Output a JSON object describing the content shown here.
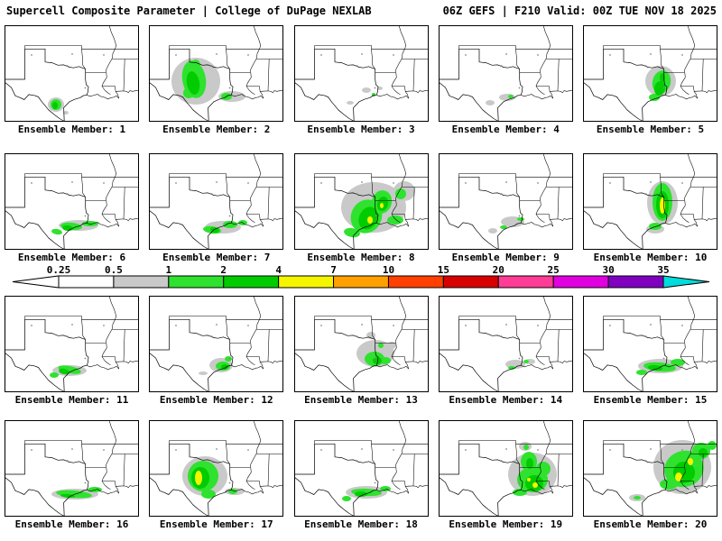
{
  "header": {
    "left": "Supercell Composite Parameter | College of DuPage NEXLAB",
    "right": "06Z GEFS | F210 Valid: 00Z TUE NOV 18 2025"
  },
  "colorbar": {
    "ticks": [
      "0.25",
      "0.5",
      "1",
      "2",
      "4",
      "7",
      "10",
      "15",
      "20",
      "25",
      "30",
      "35"
    ],
    "segments": [
      "#ffffff",
      "#c9c9c9",
      "#2ee22e",
      "#00cc00",
      "#f5f500",
      "#ffa000",
      "#ff4000",
      "#d80000",
      "#ff3c96",
      "#e000e0",
      "#8000c0"
    ],
    "arrow_left": "#ffffff",
    "arrow_right": "#00dcdc"
  },
  "map_palette": {
    "gray": "#c9c9c9",
    "green1": "#2ee22e",
    "green2": "#00cc00",
    "yellow": "#f5f500",
    "orange": "#ffa000"
  },
  "members": [
    {
      "label": "Ensemble Member: 1",
      "blobs": [
        [
          57,
          88,
          9,
          8,
          0,
          "gray"
        ],
        [
          68,
          97,
          3,
          2,
          0,
          "gray"
        ],
        [
          57,
          88,
          6,
          6,
          0,
          "green1"
        ],
        [
          56,
          89,
          3,
          4,
          0,
          "green2"
        ]
      ]
    },
    {
      "label": "Ensemble Member: 2",
      "blobs": [
        [
          52,
          62,
          27,
          26,
          0,
          "gray"
        ],
        [
          92,
          79,
          15,
          6,
          0,
          "gray"
        ],
        [
          50,
          60,
          13,
          21,
          -10,
          "green1"
        ],
        [
          44,
          75,
          6,
          6,
          0,
          "green1"
        ],
        [
          86,
          79,
          6,
          4,
          0,
          "green1"
        ],
        [
          52,
          45,
          5,
          7,
          0,
          "green1"
        ],
        [
          49,
          64,
          7,
          13,
          -10,
          "green2"
        ],
        [
          50,
          70,
          4,
          7,
          0,
          "green2"
        ]
      ]
    },
    {
      "label": "Ensemble Member: 3",
      "blobs": [
        [
          80,
          72,
          5,
          3,
          0,
          "gray"
        ],
        [
          62,
          86,
          4,
          2,
          0,
          "gray"
        ],
        [
          95,
          70,
          3,
          2,
          0,
          "gray"
        ],
        [
          88,
          77,
          2,
          2,
          0,
          "green1"
        ]
      ]
    },
    {
      "label": "Ensemble Member: 4",
      "blobs": [
        [
          76,
          80,
          9,
          4,
          0,
          "gray"
        ],
        [
          57,
          86,
          5,
          3,
          0,
          "gray"
        ],
        [
          80,
          79,
          3,
          2,
          0,
          "green1"
        ]
      ]
    },
    {
      "label": "Ensemble Member: 5",
      "blobs": [
        [
          86,
          62,
          17,
          17,
          0,
          "gray"
        ],
        [
          87,
          63,
          10,
          13,
          15,
          "green1"
        ],
        [
          79,
          80,
          6,
          4,
          0,
          "green1"
        ],
        [
          85,
          70,
          6,
          8,
          10,
          "green2"
        ],
        [
          88,
          58,
          3,
          5,
          0,
          "green2"
        ]
      ]
    },
    {
      "label": "Ensemble Member: 6",
      "blobs": [
        [
          82,
          80,
          22,
          6,
          0,
          "gray"
        ],
        [
          74,
          81,
          12,
          4,
          5,
          "green1"
        ],
        [
          95,
          78,
          9,
          3,
          0,
          "green1"
        ],
        [
          58,
          87,
          6,
          3,
          10,
          "green1"
        ],
        [
          70,
          83,
          6,
          3,
          5,
          "green2"
        ]
      ]
    },
    {
      "label": "Ensemble Member: 7",
      "blobs": [
        [
          82,
          82,
          20,
          7,
          0,
          "gray"
        ],
        [
          70,
          85,
          10,
          4,
          8,
          "green1"
        ],
        [
          90,
          79,
          8,
          4,
          0,
          "green1"
        ],
        [
          104,
          77,
          5,
          3,
          0,
          "green1"
        ],
        [
          73,
          85,
          5,
          3,
          8,
          "green2"
        ]
      ]
    },
    {
      "label": "Ensemble Member: 8",
      "blobs": [
        [
          88,
          60,
          36,
          28,
          0,
          "gray"
        ],
        [
          122,
          42,
          12,
          11,
          0,
          "gray"
        ],
        [
          80,
          70,
          17,
          19,
          25,
          "green1"
        ],
        [
          97,
          54,
          11,
          13,
          15,
          "green1"
        ],
        [
          64,
          88,
          9,
          5,
          10,
          "green1"
        ],
        [
          112,
          74,
          9,
          5,
          0,
          "green1"
        ],
        [
          118,
          45,
          6,
          6,
          0,
          "green1"
        ],
        [
          82,
          72,
          10,
          13,
          25,
          "green2"
        ],
        [
          98,
          56,
          6,
          8,
          15,
          "green2"
        ],
        [
          84,
          74,
          3,
          4,
          0,
          "yellow"
        ],
        [
          97,
          58,
          2,
          3,
          0,
          "yellow"
        ]
      ]
    },
    {
      "label": "Ensemble Member: 9",
      "blobs": [
        [
          82,
          76,
          13,
          6,
          0,
          "gray"
        ],
        [
          60,
          86,
          5,
          3,
          0,
          "gray"
        ],
        [
          72,
          82,
          4,
          2,
          0,
          "green1"
        ],
        [
          91,
          73,
          4,
          2,
          0,
          "green1"
        ]
      ]
    },
    {
      "label": "Ensemble Member: 10",
      "blobs": [
        [
          88,
          55,
          17,
          24,
          0,
          "gray"
        ],
        [
          80,
          84,
          10,
          5,
          0,
          "gray"
        ],
        [
          88,
          54,
          11,
          21,
          0,
          "green1"
        ],
        [
          80,
          81,
          7,
          4,
          0,
          "green1"
        ],
        [
          88,
          57,
          7,
          15,
          0,
          "green2"
        ],
        [
          88,
          58,
          3,
          9,
          0,
          "yellow"
        ]
      ]
    },
    {
      "label": "Ensemble Member: 11",
      "blobs": [
        [
          72,
          83,
          19,
          6,
          0,
          "gray"
        ],
        [
          72,
          82,
          13,
          4,
          12,
          "green1"
        ],
        [
          55,
          88,
          5,
          3,
          0,
          "green1"
        ],
        [
          66,
          84,
          6,
          3,
          12,
          "green2"
        ]
      ]
    },
    {
      "label": "Ensemble Member: 12",
      "blobs": [
        [
          80,
          77,
          13,
          8,
          0,
          "gray"
        ],
        [
          60,
          86,
          5,
          2,
          0,
          "gray"
        ],
        [
          82,
          78,
          8,
          5,
          0,
          "green1"
        ],
        [
          88,
          70,
          4,
          3,
          0,
          "green1"
        ],
        [
          84,
          79,
          4,
          3,
          0,
          "green2"
        ]
      ]
    },
    {
      "label": "Ensemble Member: 13",
      "blobs": [
        [
          90,
          64,
          21,
          15,
          0,
          "gray"
        ],
        [
          85,
          44,
          5,
          4,
          0,
          "gray"
        ],
        [
          108,
          55,
          5,
          4,
          0,
          "gray"
        ],
        [
          89,
          70,
          11,
          8,
          0,
          "green1"
        ],
        [
          101,
          72,
          6,
          4,
          0,
          "green1"
        ],
        [
          96,
          55,
          3,
          3,
          0,
          "green1"
        ],
        [
          92,
          72,
          5,
          4,
          0,
          "green2"
        ]
      ]
    },
    {
      "label": "Ensemble Member: 14",
      "blobs": [
        [
          85,
          76,
          11,
          5,
          0,
          "gray"
        ],
        [
          101,
          73,
          6,
          3,
          0,
          "gray"
        ],
        [
          81,
          80,
          4,
          2,
          0,
          "green1"
        ],
        [
          97,
          73,
          3,
          2,
          0,
          "green1"
        ]
      ]
    },
    {
      "label": "Ensemble Member: 15",
      "blobs": [
        [
          86,
          78,
          25,
          8,
          0,
          "gray"
        ],
        [
          85,
          79,
          18,
          5,
          5,
          "green1"
        ],
        [
          105,
          74,
          8,
          4,
          0,
          "green1"
        ],
        [
          65,
          85,
          6,
          3,
          0,
          "green1"
        ],
        [
          80,
          80,
          8,
          3,
          5,
          "green2"
        ]
      ]
    },
    {
      "label": "Ensemble Member: 16",
      "blobs": [
        [
          78,
          82,
          26,
          6,
          0,
          "gray"
        ],
        [
          77,
          82,
          20,
          4,
          5,
          "green1"
        ],
        [
          100,
          77,
          8,
          3,
          0,
          "green1"
        ],
        [
          70,
          84,
          8,
          2,
          5,
          "green2"
        ]
      ]
    },
    {
      "label": "Ensemble Member: 17",
      "blobs": [
        [
          62,
          62,
          25,
          22,
          0,
          "gray"
        ],
        [
          95,
          79,
          11,
          4,
          0,
          "gray"
        ],
        [
          60,
          62,
          17,
          17,
          0,
          "green1"
        ],
        [
          66,
          82,
          8,
          5,
          0,
          "green1"
        ],
        [
          93,
          79,
          5,
          3,
          0,
          "green1"
        ],
        [
          57,
          64,
          10,
          12,
          0,
          "green2"
        ],
        [
          55,
          64,
          4,
          8,
          0,
          "yellow"
        ]
      ]
    },
    {
      "label": "Ensemble Member: 18",
      "blobs": [
        [
          80,
          80,
          23,
          7,
          0,
          "gray"
        ],
        [
          80,
          80,
          17,
          4,
          3,
          "green1"
        ],
        [
          101,
          76,
          6,
          3,
          0,
          "green1"
        ],
        [
          58,
          87,
          5,
          3,
          0,
          "green1"
        ],
        [
          74,
          82,
          7,
          3,
          0,
          "green2"
        ]
      ]
    },
    {
      "label": "Ensemble Member: 19",
      "blobs": [
        [
          104,
          60,
          27,
          24,
          0,
          "gray"
        ],
        [
          96,
          29,
          7,
          5,
          0,
          "gray"
        ],
        [
          104,
          66,
          17,
          14,
          0,
          "green1"
        ],
        [
          100,
          46,
          9,
          11,
          0,
          "green1"
        ],
        [
          116,
          54,
          8,
          8,
          0,
          "green1"
        ],
        [
          90,
          80,
          8,
          4,
          0,
          "green1"
        ],
        [
          97,
          30,
          3,
          3,
          0,
          "green1"
        ],
        [
          106,
          70,
          10,
          9,
          0,
          "green2"
        ],
        [
          101,
          48,
          4,
          6,
          0,
          "green2"
        ],
        [
          107,
          72,
          3,
          3,
          0,
          "yellow"
        ],
        [
          100,
          66,
          2,
          2,
          0,
          "yellow"
        ]
      ]
    },
    {
      "label": "Ensemble Member: 20",
      "blobs": [
        [
          110,
          52,
          32,
          30,
          0,
          "gray"
        ],
        [
          60,
          86,
          9,
          4,
          0,
          "gray"
        ],
        [
          112,
          54,
          22,
          20,
          -20,
          "green1"
        ],
        [
          95,
          71,
          10,
          6,
          0,
          "green1"
        ],
        [
          131,
          34,
          10,
          9,
          0,
          "green1"
        ],
        [
          143,
          28,
          5,
          5,
          0,
          "green1"
        ],
        [
          60,
          86,
          4,
          2,
          0,
          "green1"
        ],
        [
          112,
          58,
          12,
          12,
          -15,
          "green2"
        ],
        [
          133,
          36,
          5,
          5,
          0,
          "green2"
        ],
        [
          106,
          63,
          4,
          5,
          0,
          "yellow"
        ],
        [
          119,
          46,
          3,
          4,
          0,
          "yellow"
        ]
      ]
    }
  ]
}
